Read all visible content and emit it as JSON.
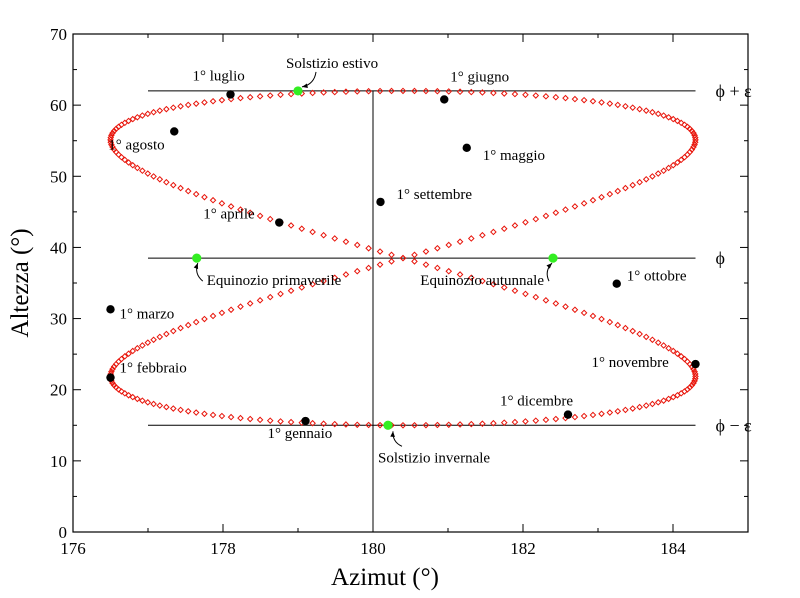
{
  "chart_data": {
    "type": "scatter",
    "title": "",
    "xlabel": "Azimut (°)",
    "ylabel": "Altezza (°)",
    "xlim": [
      176,
      185
    ],
    "ylim": [
      0,
      70
    ],
    "xticks": [
      176,
      178,
      180,
      182,
      184
    ],
    "yticks": [
      0,
      10,
      20,
      30,
      40,
      50,
      60,
      70
    ],
    "grid": false,
    "curve_color": "#e8140a",
    "marker_color": "#000000",
    "highlight_color": "#33ee22",
    "analemma": {
      "x_center": 180.4,
      "x_amplitude": 3.9,
      "y_center": 38.5,
      "y_amplitude": 23.5
    },
    "reference_lines": {
      "horizontal": [
        {
          "y": 62,
          "xrange": [
            177,
            184.3
          ],
          "label": "ϕ + ε"
        },
        {
          "y": 38.5,
          "xrange": [
            177,
            184.3
          ],
          "label": "ϕ"
        },
        {
          "y": 15,
          "xrange": [
            177,
            184.3
          ],
          "label": "ϕ − ε"
        }
      ],
      "vertical": {
        "x": 180,
        "yrange": [
          0,
          62
        ]
      }
    },
    "events": [
      {
        "label": "1° gennaio",
        "x": 179.1,
        "y": 15.6,
        "kind": "month"
      },
      {
        "label": "1° febbraio",
        "x": 176.5,
        "y": 21.7,
        "kind": "month"
      },
      {
        "label": "1° marzo",
        "x": 176.5,
        "y": 31.3,
        "kind": "month"
      },
      {
        "label": "1° aprile",
        "x": 178.75,
        "y": 43.5,
        "kind": "month"
      },
      {
        "label": "1° maggio",
        "x": 181.25,
        "y": 54.0,
        "kind": "month"
      },
      {
        "label": "1° giugno",
        "x": 180.95,
        "y": 60.8,
        "kind": "month"
      },
      {
        "label": "1° luglio",
        "x": 178.1,
        "y": 61.5,
        "kind": "month"
      },
      {
        "label": "1° agosto",
        "x": 177.35,
        "y": 56.3,
        "kind": "month"
      },
      {
        "label": "1° settembre",
        "x": 180.1,
        "y": 46.4,
        "kind": "month"
      },
      {
        "label": "1° ottobre",
        "x": 183.25,
        "y": 34.9,
        "kind": "month"
      },
      {
        "label": "1° novembre",
        "x": 184.3,
        "y": 23.6,
        "kind": "month"
      },
      {
        "label": "1° dicembre",
        "x": 182.6,
        "y": 16.5,
        "kind": "month"
      },
      {
        "label": "Solstizio estivo",
        "x": 179.0,
        "y": 62.0,
        "kind": "solstice"
      },
      {
        "label": "Equinozio primaverile",
        "x": 177.65,
        "y": 38.5,
        "kind": "equinox"
      },
      {
        "label": "Equinozio autunnale",
        "x": 182.4,
        "y": 38.5,
        "kind": "equinox"
      },
      {
        "label": "Solstizio invernale",
        "x": 180.2,
        "y": 15.0,
        "kind": "solstice"
      }
    ]
  }
}
